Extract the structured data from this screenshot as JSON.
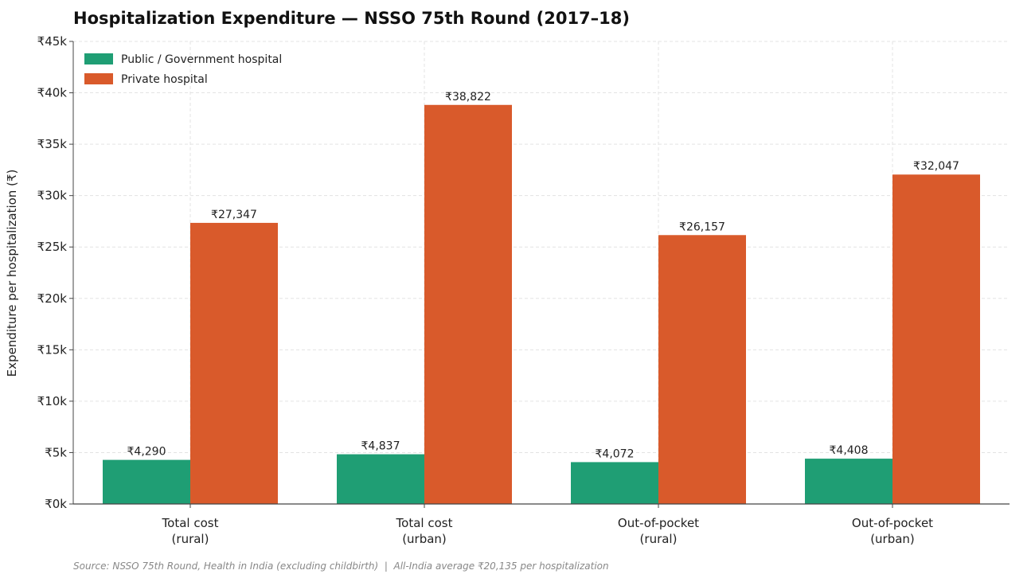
{
  "chart_data": {
    "type": "bar",
    "title": "Hospitalization Expenditure — NSSO 75th Round (2017–18)",
    "ylabel": "Expenditure per hospitalization (₹)",
    "xlabel": "",
    "ylim": [
      0,
      45000
    ],
    "yticks": [
      0,
      5000,
      10000,
      15000,
      20000,
      25000,
      30000,
      35000,
      40000,
      45000
    ],
    "ytick_labels": [
      "₹0k",
      "₹5k",
      "₹10k",
      "₹15k",
      "₹20k",
      "₹25k",
      "₹30k",
      "₹35k",
      "₹40k",
      "₹45k"
    ],
    "categories": [
      [
        "Total cost",
        "(rural)"
      ],
      [
        "Total cost",
        "(urban)"
      ],
      [
        "Out-of-pocket",
        "(rural)"
      ],
      [
        "Out-of-pocket",
        "(urban)"
      ]
    ],
    "series": [
      {
        "name": "Public / Government hospital",
        "color": "#1f9e74",
        "values": [
          4290,
          4837,
          4072,
          4408
        ],
        "labels": [
          "₹4,290",
          "₹4,837",
          "₹4,072",
          "₹4,408"
        ]
      },
      {
        "name": "Private hospital",
        "color": "#d95a2b",
        "values": [
          27347,
          38822,
          26157,
          32047
        ],
        "labels": [
          "₹27,347",
          "₹38,822",
          "₹26,157",
          "₹32,047"
        ]
      }
    ],
    "grid": true,
    "legend": "top-left",
    "source": "Source: NSSO 75th Round, Health in India (excluding childbirth)  |  All-India average ₹20,135 per hospitalization"
  }
}
